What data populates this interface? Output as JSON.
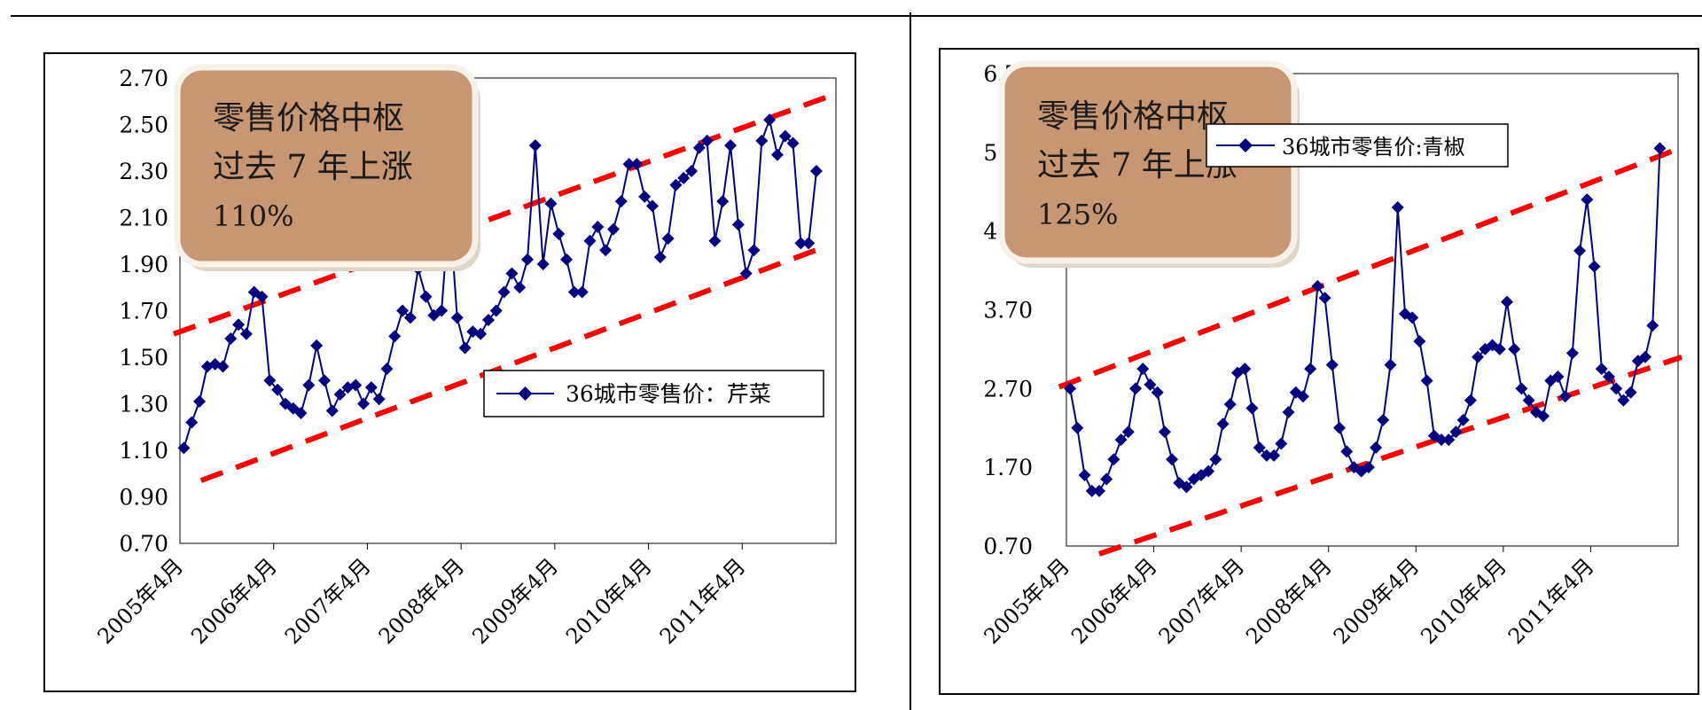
{
  "colors": {
    "series": "#000080",
    "trend": "#ff0000",
    "annotation_fill": "#c89670",
    "frame": "#000000"
  },
  "chart_data": [
    {
      "type": "line",
      "series_name": "36城市零售价：芹菜",
      "x_ticks": [
        "2005年4月",
        "2006年4月",
        "2007年4月",
        "2008年4月",
        "2009年4月",
        "2010年4月",
        "2011年4月"
      ],
      "y_ticks": [
        "2.70",
        "2.50",
        "2.30",
        "2.10",
        "1.90",
        "1.70",
        "1.50",
        "1.30",
        "1.10",
        "0.90",
        "0.70"
      ],
      "ylim": [
        0.7,
        2.7
      ],
      "x_start": "2005-04",
      "months": 84,
      "values": [
        1.11,
        1.22,
        1.31,
        1.46,
        1.47,
        1.46,
        1.58,
        1.64,
        1.6,
        1.78,
        1.76,
        1.4,
        1.36,
        1.3,
        1.28,
        1.26,
        1.38,
        1.55,
        1.4,
        1.27,
        1.34,
        1.37,
        1.38,
        1.3,
        1.37,
        1.32,
        1.45,
        1.59,
        1.7,
        1.67,
        1.88,
        1.76,
        1.68,
        1.7,
        2.15,
        1.67,
        1.54,
        1.61,
        1.6,
        1.66,
        1.7,
        1.78,
        1.86,
        1.8,
        1.92,
        2.41,
        1.9,
        2.16,
        2.03,
        1.92,
        1.78,
        1.78,
        2.0,
        2.06,
        1.96,
        2.05,
        2.17,
        2.33,
        2.33,
        2.19,
        2.15,
        1.93,
        2.01,
        2.24,
        2.27,
        2.3,
        2.4,
        2.43,
        2.0,
        2.17,
        2.41,
        2.07,
        1.86,
        1.96,
        2.43,
        2.52,
        2.37,
        2.45,
        2.42,
        1.99,
        1.99,
        2.3
      ],
      "trend_upper": [
        [
          1.6,
          -1.3
        ],
        [
          2.62,
          82.5
        ]
      ],
      "trend_lower": [
        [
          0.97,
          2.2
        ],
        [
          1.98,
          82.5
        ]
      ],
      "annotation": [
        "零售价格中枢",
        "过去 7 年上涨",
        "110%"
      ]
    },
    {
      "type": "line",
      "series_name": "36城市零售价:青椒",
      "x_ticks": [
        "2005年4月",
        "2006年4月",
        "2007年4月",
        "2008年4月",
        "2009年4月",
        "2010年4月",
        "2011年4月"
      ],
      "y_ticks": [
        "6.70",
        "5.70",
        "4.70",
        "3.70",
        "2.70",
        "1.70",
        "0.70"
      ],
      "ylim": [
        0.7,
        6.7
      ],
      "x_start": "2005-04",
      "months": 84,
      "values": [
        2.7,
        2.2,
        1.6,
        1.4,
        1.4,
        1.55,
        1.8,
        2.05,
        2.15,
        2.7,
        2.95,
        2.75,
        2.65,
        2.15,
        1.8,
        1.5,
        1.45,
        1.55,
        1.6,
        1.65,
        1.8,
        2.25,
        2.5,
        2.9,
        2.95,
        2.45,
        1.95,
        1.85,
        1.85,
        2.0,
        2.4,
        2.65,
        2.6,
        2.95,
        4.0,
        3.85,
        3.0,
        2.2,
        1.9,
        1.7,
        1.65,
        1.7,
        1.95,
        2.3,
        3.0,
        5.0,
        3.65,
        3.6,
        3.3,
        2.8,
        2.1,
        2.05,
        2.05,
        2.15,
        2.3,
        2.55,
        3.1,
        3.2,
        3.25,
        3.2,
        3.8,
        3.2,
        2.7,
        2.55,
        2.4,
        2.35,
        2.8,
        2.85,
        2.6,
        3.15,
        4.45,
        5.1,
        4.25,
        2.95,
        2.85,
        2.7,
        2.55,
        2.65,
        3.05,
        3.1,
        3.5,
        5.75
      ],
      "trend_upper": [
        [
          2.72,
          -1.5
        ],
        [
          5.76,
          84
        ]
      ],
      "trend_lower": [
        [
          0.6,
          4.0
        ],
        [
          3.1,
          84
        ]
      ],
      "annotation": [
        "零售价格中枢",
        "过去 7 年上涨",
        "125%"
      ]
    }
  ]
}
